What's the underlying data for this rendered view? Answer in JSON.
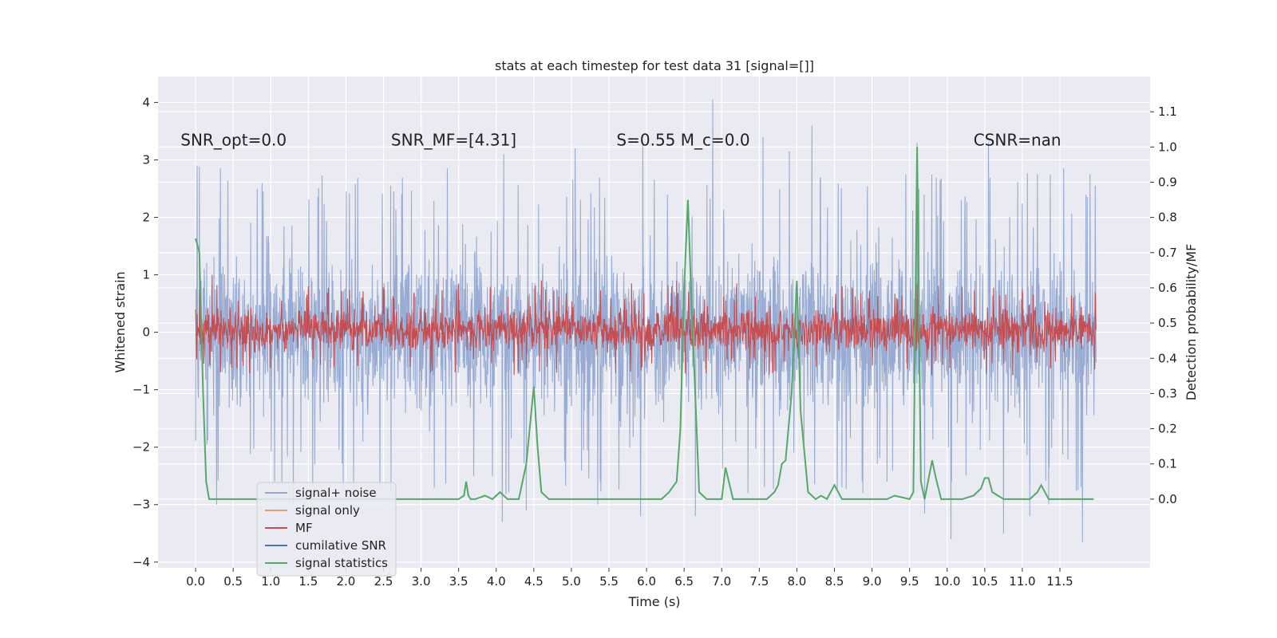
{
  "chart_data": {
    "type": "line",
    "title": "stats at each timestep for test data 31 [signal=[]]",
    "xlabel": "Time (s)",
    "ylabel": "Whitened strain",
    "y2label": "Detection probability/MF",
    "xlim": [
      -0.5,
      12.7
    ],
    "ylim": [
      -4.1,
      4.45
    ],
    "y2lim": [
      -0.195,
      1.2
    ],
    "x_ticks": [
      0.0,
      0.5,
      1.0,
      1.5,
      2.0,
      2.5,
      3.0,
      3.5,
      4.0,
      4.5,
      5.0,
      5.5,
      6.0,
      6.5,
      7.0,
      7.5,
      8.0,
      8.5,
      9.0,
      9.5,
      10.0,
      10.5,
      11.0,
      11.5
    ],
    "x_tick_labels": [
      "0.0",
      "0.5",
      "1.0",
      "1.5",
      "2.0",
      "2.5",
      "3.0",
      "3.5",
      "4.0",
      "4.5",
      "5.0",
      "5.5",
      "6.0",
      "6.5",
      "7.0",
      "7.5",
      "8.0",
      "8.5",
      "9.0",
      "9.5",
      "10.0",
      "10.5",
      "11.0",
      "11.5"
    ],
    "y_ticks": [
      -4,
      -3,
      -2,
      -1,
      0,
      1,
      2,
      3,
      4
    ],
    "y_tick_labels": [
      "−4",
      "−3",
      "−2",
      "−1",
      "0",
      "1",
      "2",
      "3",
      "4"
    ],
    "y2_ticks": [
      0.0,
      0.1,
      0.2,
      0.3,
      0.4,
      0.5,
      0.6,
      0.7,
      0.8,
      0.9,
      1.0,
      1.1
    ],
    "y2_tick_labels": [
      "0.0",
      "0.1",
      "0.2",
      "0.3",
      "0.4",
      "0.5",
      "0.6",
      "0.7",
      "0.8",
      "0.9",
      "1.0",
      "1.1"
    ],
    "grid": true,
    "legend_position": "lower-left",
    "annotations": [
      {
        "text": "SNR_opt=0.0",
        "x": -0.2,
        "y": 3.35
      },
      {
        "text": "SNR_MF=[4.31]",
        "x": 2.6,
        "y": 3.35
      },
      {
        "text": "S=0.55   M_c=0.0",
        "x": 5.6,
        "y": 3.35
      },
      {
        "text": "CSNR=nan",
        "x": 10.35,
        "y": 3.35
      }
    ],
    "series": [
      {
        "name": "signal+ noise",
        "color": "#92a8d1",
        "kind": "noise",
        "x_range": [
          0.0,
          11.98
        ],
        "typical_envelope": [
          -1.5,
          1.45
        ],
        "spikes": [
          [
            0.02,
            2.9
          ],
          [
            0.05,
            2.88
          ],
          [
            0.33,
            2.85
          ],
          [
            0.15,
            -1.95
          ],
          [
            0.28,
            -3.0
          ],
          [
            0.9,
            2.45
          ],
          [
            1.05,
            -2.6
          ],
          [
            1.3,
            -3.0
          ],
          [
            2.6,
            -2.8
          ],
          [
            3.35,
            2.85
          ],
          [
            3.7,
            -2.5
          ],
          [
            3.95,
            -2.5
          ],
          [
            4.1,
            3.1
          ],
          [
            4.08,
            -3.3
          ],
          [
            4.4,
            -3.1
          ],
          [
            5.05,
            3.2
          ],
          [
            5.35,
            -3.0
          ],
          [
            5.95,
            3.3
          ],
          [
            5.92,
            -3.2
          ],
          [
            6.65,
            -3.2
          ],
          [
            6.88,
            4.05
          ],
          [
            7.35,
            -2.8
          ],
          [
            7.55,
            3.4
          ],
          [
            7.9,
            3.15
          ],
          [
            8.2,
            3.6
          ],
          [
            8.6,
            -2.7
          ],
          [
            9.2,
            -2.6
          ],
          [
            9.6,
            3.3
          ],
          [
            9.7,
            -3.15
          ],
          [
            10.05,
            -3.6
          ],
          [
            10.55,
            3.3
          ],
          [
            10.75,
            -3.5
          ],
          [
            11.1,
            -3.2
          ],
          [
            11.2,
            2.75
          ],
          [
            11.35,
            -3.0
          ],
          [
            11.55,
            2.85
          ],
          [
            11.8,
            -3.65
          ],
          [
            11.9,
            2.75
          ],
          [
            11.97,
            2.55
          ]
        ]
      },
      {
        "name": "signal only",
        "color": "#dd9e7a",
        "kind": "flat",
        "values": []
      },
      {
        "name": "MF",
        "color": "#c44e52",
        "kind": "noise",
        "x_range": [
          0.0,
          11.98
        ],
        "typical_envelope": [
          -0.38,
          0.45
        ],
        "spikes": [
          [
            0.22,
            1.0
          ],
          [
            1.5,
            0.8
          ],
          [
            3.5,
            0.85
          ],
          [
            4.6,
            0.9
          ],
          [
            5.8,
            0.85
          ],
          [
            6.4,
            0.9
          ],
          [
            7.2,
            0.85
          ],
          [
            8.6,
            0.8
          ],
          [
            9.6,
            0.85
          ],
          [
            11.0,
            0.75
          ]
        ]
      },
      {
        "name": "cumilative SNR",
        "color": "#4c72b0",
        "kind": "flat",
        "values": []
      },
      {
        "name": "signal statistics",
        "color": "#55a868",
        "kind": "line",
        "axis": "right",
        "x": [
          0.0,
          0.05,
          0.1,
          0.14,
          0.18,
          0.6,
          1.0,
          2.0,
          3.0,
          3.5,
          3.57,
          3.6,
          3.63,
          3.66,
          3.72,
          3.85,
          3.95,
          4.05,
          4.1,
          4.15,
          4.3,
          4.4,
          4.5,
          4.55,
          4.6,
          4.7,
          5.0,
          5.5,
          6.0,
          6.2,
          6.3,
          6.4,
          6.45,
          6.5,
          6.55,
          6.6,
          6.7,
          6.8,
          7.0,
          7.05,
          7.15,
          7.4,
          7.6,
          7.7,
          7.75,
          7.8,
          7.85,
          7.93,
          8.0,
          8.05,
          8.15,
          8.25,
          8.32,
          8.4,
          8.5,
          8.6,
          9.0,
          9.2,
          9.3,
          9.5,
          9.55,
          9.6,
          9.65,
          9.7,
          9.8,
          9.85,
          9.92,
          10.0,
          10.2,
          10.35,
          10.45,
          10.5,
          10.55,
          10.6,
          10.75,
          10.95,
          11.1,
          11.2,
          11.25,
          11.35,
          11.7,
          11.95
        ],
        "y": [
          0.74,
          0.7,
          0.3,
          0.05,
          0.0,
          0.0,
          0.0,
          0.0,
          0.0,
          0.0,
          0.01,
          0.05,
          0.01,
          0.0,
          0.0,
          0.01,
          0.0,
          0.02,
          0.01,
          0.0,
          0.0,
          0.1,
          0.32,
          0.15,
          0.02,
          0.0,
          0.0,
          0.0,
          0.0,
          0.0,
          0.02,
          0.05,
          0.2,
          0.6,
          0.85,
          0.55,
          0.02,
          0.0,
          0.0,
          0.09,
          0.0,
          0.0,
          0.0,
          0.02,
          0.04,
          0.1,
          0.11,
          0.3,
          0.62,
          0.25,
          0.02,
          0.0,
          0.01,
          0.0,
          0.04,
          0.0,
          0.0,
          0.0,
          0.01,
          0.0,
          0.02,
          1.0,
          0.05,
          0.0,
          0.11,
          0.06,
          0.0,
          0.0,
          0.0,
          0.01,
          0.03,
          0.06,
          0.06,
          0.02,
          0.0,
          0.0,
          0.0,
          0.02,
          0.04,
          0.0,
          0.0,
          0.0
        ]
      }
    ]
  }
}
